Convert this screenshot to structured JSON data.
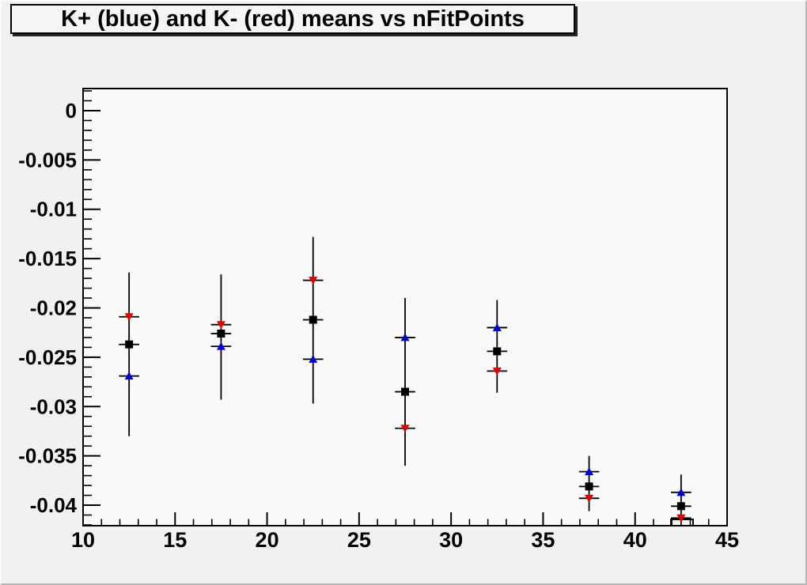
{
  "title_bar": {
    "text": "K+ (blue) and K- (red) means vs nFitPoints"
  },
  "colors": {
    "canvas_background": "#f1f1f1",
    "frame_background": "#f9f9f9",
    "axis_color": "#000000",
    "kplus_blue": "#0000cc",
    "kminus_red": "#dd0000",
    "mean_black": "#000000",
    "title_box_background": "#f5f5f5"
  },
  "chart_data": {
    "type": "scatter",
    "title": "K+ (blue) and K- (red) means vs nFitPoints",
    "xlabel": "",
    "ylabel": "",
    "grid": false,
    "legend": "none (series identified in title)",
    "xlim": [
      10,
      45
    ],
    "ylim": [
      -0.04208,
      0.00224
    ],
    "x_axis": {
      "major_ticks": [
        10,
        15,
        20,
        25,
        30,
        35,
        40,
        45
      ],
      "major_tick_labels": [
        "10",
        "15",
        "20",
        "25",
        "30",
        "35",
        "40",
        "45"
      ],
      "minor_tick_step": 1
    },
    "y_axis": {
      "major_ticks": [
        0,
        -0.005,
        -0.01,
        -0.015,
        -0.02,
        -0.025,
        -0.03,
        -0.035,
        -0.04
      ],
      "major_tick_labels": [
        "0",
        "-0.005",
        "-0.01",
        "-0.015",
        "-0.02",
        "-0.025",
        "-0.03",
        "-0.035",
        "-0.04"
      ],
      "minor_tick_step": 0.001
    },
    "x": [
      12.5,
      17.5,
      22.5,
      27.5,
      32.5,
      37.5,
      42.5
    ],
    "xerr": 0.55,
    "series": [
      {
        "name": "mean (black)",
        "marker": "square",
        "color": "#000000",
        "values": [
          -0.0237,
          -0.0226,
          -0.0212,
          -0.0285,
          -0.0244,
          -0.0381,
          -0.0401
        ],
        "err_high": [
          -0.0164,
          -0.0166,
          -0.0128,
          -0.019,
          -0.0192,
          -0.035,
          -0.0369
        ],
        "err_low": [
          -0.033,
          -0.0293,
          -0.0297,
          -0.036,
          -0.0286,
          -0.0406,
          -0.044
        ]
      },
      {
        "name": "K+ (blue)",
        "marker": "triangle-up",
        "color": "#0000cc",
        "values": [
          -0.0269,
          -0.0239,
          -0.0252,
          -0.023,
          -0.022,
          -0.0366,
          -0.0387
        ]
      },
      {
        "name": "K- (red)",
        "marker": "triangle-down",
        "color": "#dd0000",
        "values": [
          -0.0209,
          -0.0217,
          -0.0172,
          -0.0322,
          -0.0264,
          -0.0393,
          -0.0413
        ]
      }
    ],
    "annotations": [
      {
        "type": "clipped-open-box",
        "comment": "small open rectangle straddling the bottom axis under the last red point",
        "x1": 41.95,
        "x2": 43.15,
        "top": -0.04144
      }
    ]
  }
}
